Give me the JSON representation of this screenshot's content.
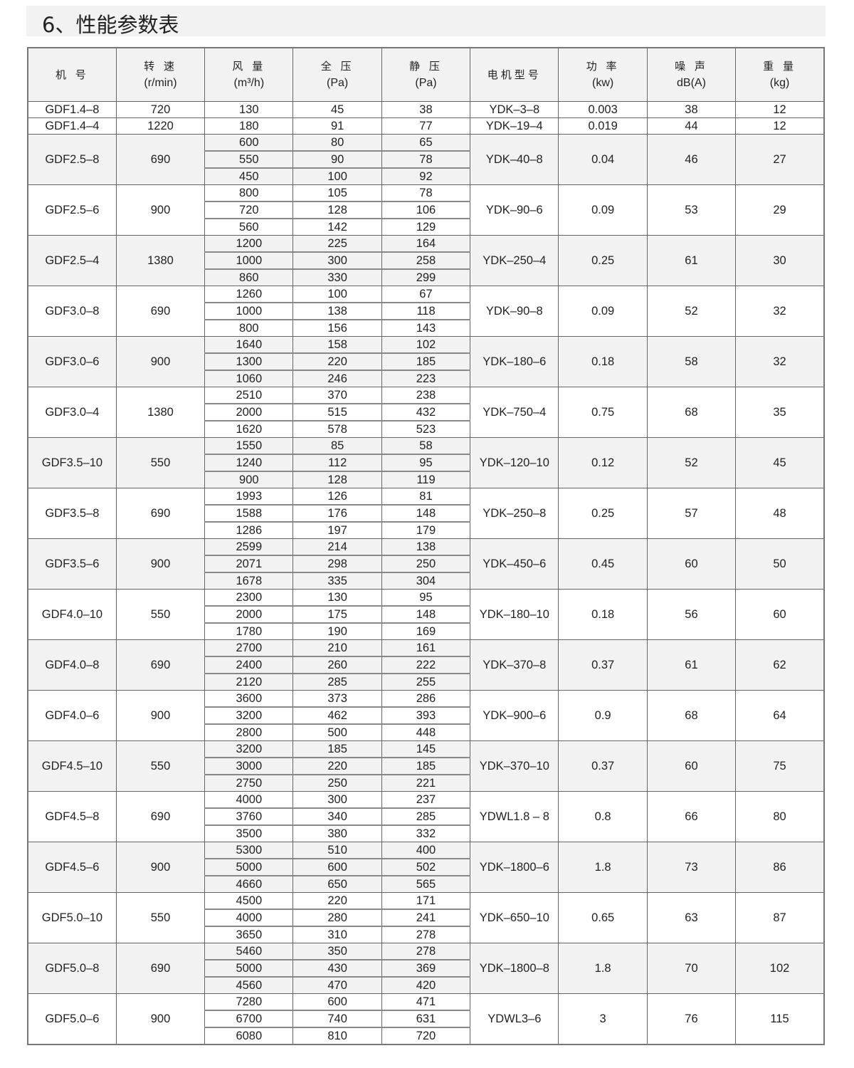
{
  "title": "6、性能参数表",
  "header": [
    {
      "name": "机 号",
      "unit": ""
    },
    {
      "name": "转 速",
      "unit": "(r/min)"
    },
    {
      "name": "风 量",
      "unit": "(m³/h)"
    },
    {
      "name": "全 压",
      "unit": "(Pa)"
    },
    {
      "name": "静 压",
      "unit": "(Pa)"
    },
    {
      "name": "电机型号",
      "unit": ""
    },
    {
      "name": "功 率",
      "unit": "(kw)"
    },
    {
      "name": "噪 声",
      "unit": "dB(A)"
    },
    {
      "name": "重 量",
      "unit": "(kg)"
    }
  ],
  "groups": [
    {
      "model": "GDF1.4–8",
      "speed": "720",
      "points": [
        [
          "130",
          "45",
          "38"
        ]
      ],
      "motor": "YDK–3–8",
      "power": "0.003",
      "noise": "38",
      "weight": "12"
    },
    {
      "model": "GDF1.4–4",
      "speed": "1220",
      "points": [
        [
          "180",
          "91",
          "77"
        ]
      ],
      "motor": "YDK–19–4",
      "power": "0.019",
      "noise": "44",
      "weight": "12"
    },
    {
      "model": "GDF2.5–8",
      "speed": "690",
      "points": [
        [
          "600",
          "80",
          "65"
        ],
        [
          "550",
          "90",
          "78"
        ],
        [
          "450",
          "100",
          "92"
        ]
      ],
      "motor": "YDK–40–8",
      "power": "0.04",
      "noise": "46",
      "weight": "27"
    },
    {
      "model": "GDF2.5–6",
      "speed": "900",
      "points": [
        [
          "800",
          "105",
          "78"
        ],
        [
          "720",
          "128",
          "106"
        ],
        [
          "560",
          "142",
          "129"
        ]
      ],
      "motor": "YDK–90–6",
      "power": "0.09",
      "noise": "53",
      "weight": "29"
    },
    {
      "model": "GDF2.5–4",
      "speed": "1380",
      "points": [
        [
          "1200",
          "225",
          "164"
        ],
        [
          "1000",
          "300",
          "258"
        ],
        [
          "860",
          "330",
          "299"
        ]
      ],
      "motor": "YDK–250–4",
      "power": "0.25",
      "noise": "61",
      "weight": "30"
    },
    {
      "model": "GDF3.0–8",
      "speed": "690",
      "points": [
        [
          "1260",
          "100",
          "67"
        ],
        [
          "1000",
          "138",
          "118"
        ],
        [
          "800",
          "156",
          "143"
        ]
      ],
      "motor": "YDK–90–8",
      "power": "0.09",
      "noise": "52",
      "weight": "32"
    },
    {
      "model": "GDF3.0–6",
      "speed": "900",
      "points": [
        [
          "1640",
          "158",
          "102"
        ],
        [
          "1300",
          "220",
          "185"
        ],
        [
          "1060",
          "246",
          "223"
        ]
      ],
      "motor": "YDK–180–6",
      "power": "0.18",
      "noise": "58",
      "weight": "32"
    },
    {
      "model": "GDF3.0–4",
      "speed": "1380",
      "points": [
        [
          "2510",
          "370",
          "238"
        ],
        [
          "2000",
          "515",
          "432"
        ],
        [
          "1620",
          "578",
          "523"
        ]
      ],
      "motor": "YDK–750–4",
      "power": "0.75",
      "noise": "68",
      "weight": "35"
    },
    {
      "model": "GDF3.5–10",
      "speed": "550",
      "points": [
        [
          "1550",
          "85",
          "58"
        ],
        [
          "1240",
          "112",
          "95"
        ],
        [
          "900",
          "128",
          "119"
        ]
      ],
      "motor": "YDK–120–10",
      "power": "0.12",
      "noise": "52",
      "weight": "45"
    },
    {
      "model": "GDF3.5–8",
      "speed": "690",
      "points": [
        [
          "1993",
          "126",
          "81"
        ],
        [
          "1588",
          "176",
          "148"
        ],
        [
          "1286",
          "197",
          "179"
        ]
      ],
      "motor": "YDK–250–8",
      "power": "0.25",
      "noise": "57",
      "weight": "48"
    },
    {
      "model": "GDF3.5–6",
      "speed": "900",
      "points": [
        [
          "2599",
          "214",
          "138"
        ],
        [
          "2071",
          "298",
          "250"
        ],
        [
          "1678",
          "335",
          "304"
        ]
      ],
      "motor": "YDK–450–6",
      "power": "0.45",
      "noise": "60",
      "weight": "50"
    },
    {
      "model": "GDF4.0–10",
      "speed": "550",
      "points": [
        [
          "2300",
          "130",
          "95"
        ],
        [
          "2000",
          "175",
          "148"
        ],
        [
          "1780",
          "190",
          "169"
        ]
      ],
      "motor": "YDK–180–10",
      "power": "0.18",
      "noise": "56",
      "weight": "60"
    },
    {
      "model": "GDF4.0–8",
      "speed": "690",
      "points": [
        [
          "2700",
          "210",
          "161"
        ],
        [
          "2400",
          "260",
          "222"
        ],
        [
          "2120",
          "285",
          "255"
        ]
      ],
      "motor": "YDK–370–8",
      "power": "0.37",
      "noise": "61",
      "weight": "62"
    },
    {
      "model": "GDF4.0–6",
      "speed": "900",
      "points": [
        [
          "3600",
          "373",
          "286"
        ],
        [
          "3200",
          "462",
          "393"
        ],
        [
          "2800",
          "500",
          "448"
        ]
      ],
      "motor": "YDK–900–6",
      "power": "0.9",
      "noise": "68",
      "weight": "64"
    },
    {
      "model": "GDF4.5–10",
      "speed": "550",
      "points": [
        [
          "3200",
          "185",
          "145"
        ],
        [
          "3000",
          "220",
          "185"
        ],
        [
          "2750",
          "250",
          "221"
        ]
      ],
      "motor": "YDK–370–10",
      "power": "0.37",
      "noise": "60",
      "weight": "75"
    },
    {
      "model": "GDF4.5–8",
      "speed": "690",
      "points": [
        [
          "4000",
          "300",
          "237"
        ],
        [
          "3760",
          "340",
          "285"
        ],
        [
          "3500",
          "380",
          "332"
        ]
      ],
      "motor": "YDWL1.8 – 8",
      "power": "0.8",
      "noise": "66",
      "weight": "80"
    },
    {
      "model": "GDF4.5–6",
      "speed": "900",
      "points": [
        [
          "5300",
          "510",
          "400"
        ],
        [
          "5000",
          "600",
          "502"
        ],
        [
          "4660",
          "650",
          "565"
        ]
      ],
      "motor": "YDK–1800–6",
      "power": "1.8",
      "noise": "73",
      "weight": "86"
    },
    {
      "model": "GDF5.0–10",
      "speed": "550",
      "points": [
        [
          "4500",
          "220",
          "171"
        ],
        [
          "4000",
          "280",
          "241"
        ],
        [
          "3650",
          "310",
          "278"
        ]
      ],
      "motor": "YDK–650–10",
      "power": "0.65",
      "noise": "63",
      "weight": "87"
    },
    {
      "model": "GDF5.0–8",
      "speed": "690",
      "points": [
        [
          "5460",
          "350",
          "278"
        ],
        [
          "5000",
          "430",
          "369"
        ],
        [
          "4560",
          "470",
          "420"
        ]
      ],
      "motor": "YDK–1800–8",
      "power": "1.8",
      "noise": "70",
      "weight": "102"
    },
    {
      "model": "GDF5.0–6",
      "speed": "900",
      "points": [
        [
          "7280",
          "600",
          "471"
        ],
        [
          "6700",
          "740",
          "631"
        ],
        [
          "6080",
          "810",
          "720"
        ]
      ],
      "motor": "YDWL3–6",
      "power": "3",
      "noise": "76",
      "weight": "115"
    }
  ]
}
